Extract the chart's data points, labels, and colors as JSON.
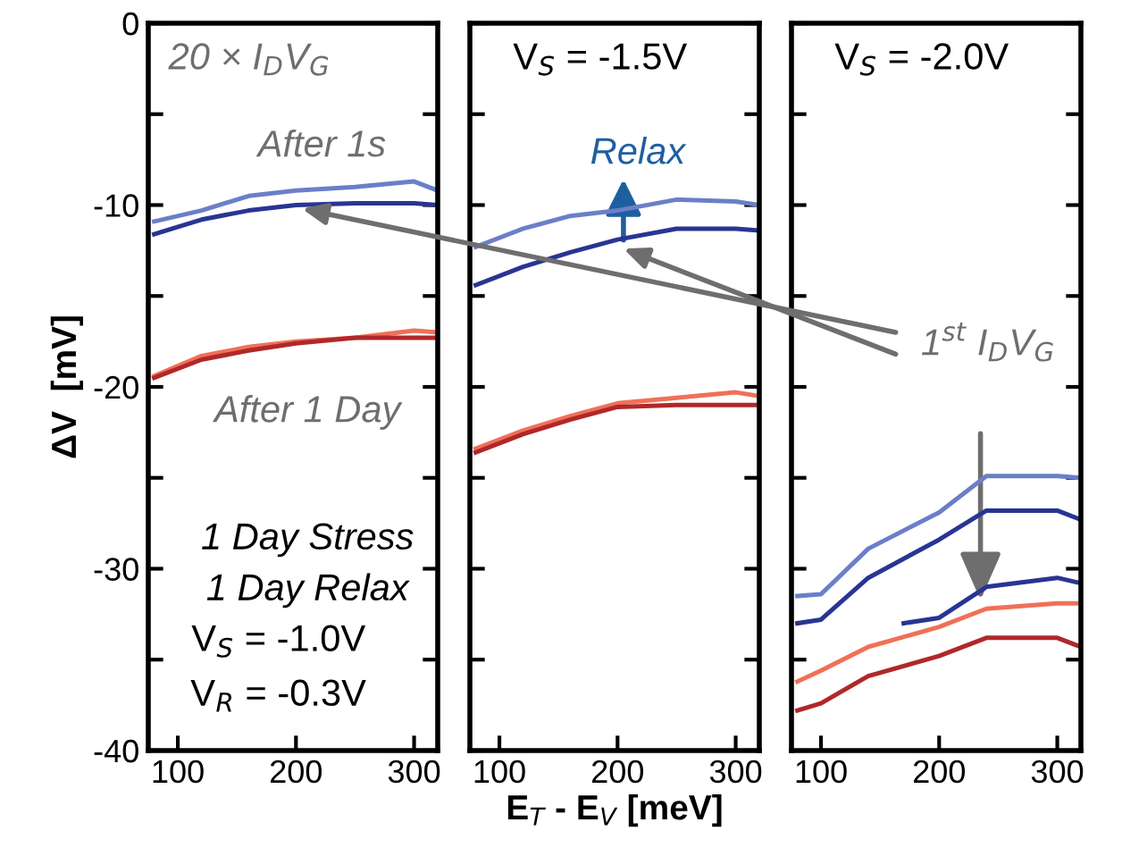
{
  "chart_data": [
    {
      "type": "line",
      "ylabel": "ΔV  [mV]",
      "xlim": [
        75,
        320
      ],
      "ylim": [
        -40,
        0
      ],
      "xticks": [
        100,
        200,
        300
      ],
      "yticks": [
        0,
        {
          "value": -5,
          "label": null
        },
        -10,
        {
          "value": -15,
          "label": null
        },
        -20,
        {
          "value": -25,
          "label": null
        },
        -30,
        {
          "value": -35,
          "label": null
        },
        -40
      ],
      "x": [
        80,
        120,
        160,
        200,
        250,
        300,
        320
      ],
      "annotations": [
        "20 × I$_{D}$V$_{G}$",
        "After 1s",
        "After 1 Day",
        "1 Day Stress",
        "1 Day Relax",
        "V$_{S}$ = -1.0V",
        "V$_{R}$ = -0.3V"
      ],
      "series": [
        {
          "color": "#6b7fc8",
          "values": [
            -10.9,
            -10.3,
            -9.5,
            -9.2,
            -9.0,
            -8.7,
            -9.2
          ]
        },
        {
          "color": "#283593",
          "values": [
            -11.6,
            -10.8,
            -10.3,
            -10.0,
            -9.9,
            -9.9,
            -10.0
          ]
        },
        {
          "color": "#f07058",
          "values": [
            -19.4,
            -18.3,
            -17.8,
            -17.5,
            -17.3,
            -16.9,
            -17.0
          ]
        },
        {
          "color": "#b0282a",
          "values": [
            -19.5,
            -18.5,
            -18.0,
            -17.6,
            -17.3,
            -17.3,
            -17.3
          ]
        }
      ]
    },
    {
      "type": "line",
      "xlabel": "E$_{T}$ - E$_{V}$ [meV]",
      "tick_labels": "x",
      "xlim": [
        75,
        320
      ],
      "ylim": [
        -40,
        0
      ],
      "xticks": [
        100,
        200,
        300
      ],
      "yticks": [
        0,
        {
          "value": -5,
          "label": null
        },
        -10,
        {
          "value": -15,
          "label": null
        },
        -20,
        {
          "value": -25,
          "label": null
        },
        -30,
        {
          "value": -35,
          "label": null
        },
        -40
      ],
      "x": [
        80,
        120,
        160,
        200,
        250,
        300,
        320
      ],
      "annotations": [
        "V$_{S}$ = -1.5V",
        "Relax"
      ],
      "series": [
        {
          "color": "#6b7fc8",
          "values": [
            -12.3,
            -11.3,
            -10.6,
            -10.3,
            -9.7,
            -9.8,
            -10.0
          ]
        },
        {
          "color": "#283593",
          "values": [
            -14.4,
            -13.4,
            -12.6,
            -11.9,
            -11.3,
            -11.3,
            -11.4
          ]
        },
        {
          "color": "#f07058",
          "values": [
            -23.4,
            -22.4,
            -21.6,
            -20.9,
            -20.6,
            -20.3,
            -20.5
          ]
        },
        {
          "color": "#b0282a",
          "values": [
            -23.6,
            -22.6,
            -21.8,
            -21.1,
            -21.0,
            -21.0,
            -21.0
          ]
        }
      ]
    },
    {
      "type": "line",
      "tick_labels": "x",
      "xlim": [
        75,
        320
      ],
      "ylim": [
        -40,
        0
      ],
      "xticks": [
        100,
        200,
        300
      ],
      "yticks": [
        0,
        {
          "value": -5,
          "label": null
        },
        -10,
        {
          "value": -15,
          "label": null
        },
        -20,
        {
          "value": -25,
          "label": null
        },
        -30,
        {
          "value": -35,
          "label": null
        },
        -40
      ],
      "x": [
        80,
        100,
        140,
        200,
        240,
        300,
        320
      ],
      "annotations": [
        "V$_{S}$ = -2.0V",
        "1$^{st}$ I$_{D}$V$_{G}$"
      ],
      "series": [
        {
          "color": "#6b7fc8",
          "values": [
            -31.5,
            -31.4,
            -28.9,
            -26.9,
            -24.9,
            -24.9,
            -25.0
          ]
        },
        {
          "color": "#283593",
          "values": [
            -33.0,
            -32.8,
            -30.5,
            -28.4,
            -26.8,
            -26.8,
            -27.3
          ]
        },
        {
          "color": "#283593",
          "x": [
            170,
            200,
            240,
            300,
            320
          ],
          "values": [
            -33.0,
            -32.7,
            -31.0,
            -30.5,
            -30.8
          ]
        },
        {
          "color": "#f07058",
          "values": [
            -36.2,
            -35.6,
            -34.3,
            -33.2,
            -32.2,
            -31.9,
            -31.9
          ]
        },
        {
          "color": "#b0282a",
          "values": [
            -37.8,
            -37.4,
            -35.9,
            -34.8,
            -33.8,
            -33.8,
            -34.3
          ]
        }
      ]
    }
  ]
}
